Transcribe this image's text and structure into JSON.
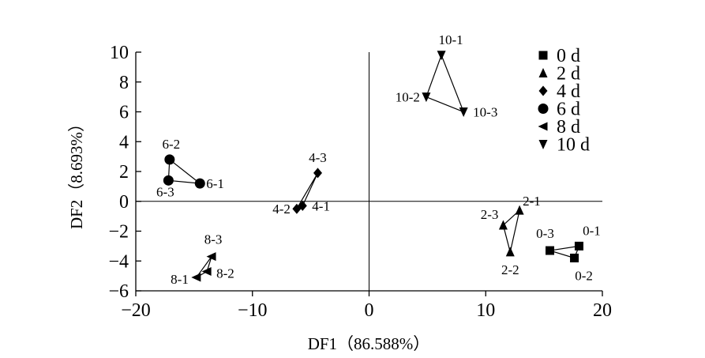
{
  "chart_data": {
    "type": "scatter",
    "xlabel": "DF1（86.588%）",
    "ylabel": "DF2（8.693%）",
    "xlim": [
      -20,
      20
    ],
    "ylim": [
      -6,
      10
    ],
    "xticks": [
      -20,
      -10,
      0,
      10,
      20
    ],
    "xtick_labels": [
      "−20",
      "−10",
      "0",
      "10",
      "20"
    ],
    "yticks": [
      -6,
      -4,
      -2,
      0,
      2,
      4,
      6,
      8,
      10
    ],
    "ytick_labels": [
      "−6",
      "−4",
      "−2",
      "0",
      "2",
      "4",
      "6",
      "8",
      "10"
    ],
    "grid": false,
    "legend_position": "top-right",
    "series": [
      {
        "name": "0 d",
        "marker": "square",
        "points": [
          {
            "label": "0-1",
            "x": 18.0,
            "y": -3.0
          },
          {
            "label": "0-2",
            "x": 17.6,
            "y": -3.8
          },
          {
            "label": "0-3",
            "x": 15.5,
            "y": -3.3
          }
        ]
      },
      {
        "name": "2 d",
        "marker": "triangle-up",
        "points": [
          {
            "label": "2-1",
            "x": 12.9,
            "y": -0.6
          },
          {
            "label": "2-2",
            "x": 12.1,
            "y": -3.4
          },
          {
            "label": "2-3",
            "x": 11.5,
            "y": -1.6
          }
        ]
      },
      {
        "name": "4 d",
        "marker": "diamond",
        "points": [
          {
            "label": "4-1",
            "x": -5.7,
            "y": -0.3
          },
          {
            "label": "4-2",
            "x": -6.2,
            "y": -0.5
          },
          {
            "label": "4-3",
            "x": -4.4,
            "y": 1.9
          }
        ]
      },
      {
        "name": "6 d",
        "marker": "circle",
        "points": [
          {
            "label": "6-1",
            "x": -14.5,
            "y": 1.2
          },
          {
            "label": "6-2",
            "x": -17.1,
            "y": 2.8
          },
          {
            "label": "6-3",
            "x": -17.2,
            "y": 1.4
          }
        ]
      },
      {
        "name": "8 d",
        "marker": "triangle-left",
        "points": [
          {
            "label": "8-1",
            "x": -14.8,
            "y": -5.1
          },
          {
            "label": "8-2",
            "x": -13.9,
            "y": -4.7
          },
          {
            "label": "8-3",
            "x": -13.5,
            "y": -3.7
          }
        ]
      },
      {
        "name": "10 d",
        "marker": "triangle-down",
        "points": [
          {
            "label": "10-1",
            "x": 6.2,
            "y": 9.8
          },
          {
            "label": "10-2",
            "x": 4.9,
            "y": 7.0
          },
          {
            "label": "10-3",
            "x": 8.1,
            "y": 6.0
          }
        ]
      }
    ]
  }
}
